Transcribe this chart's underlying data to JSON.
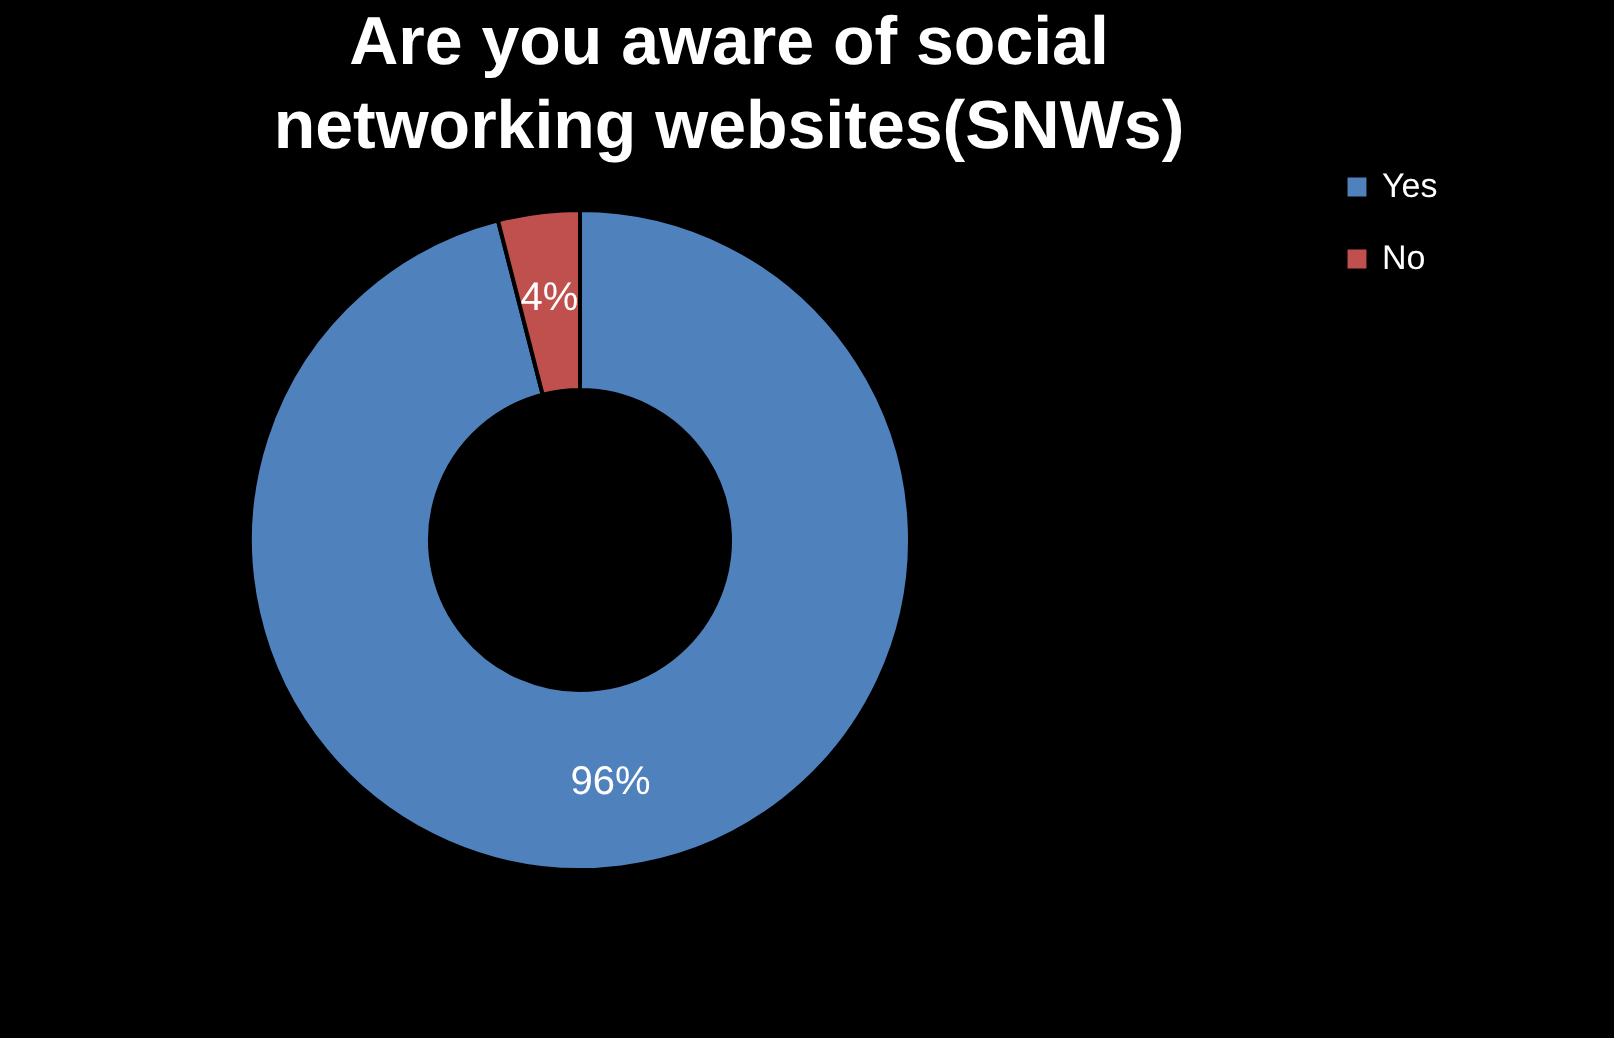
{
  "chart_data": {
    "type": "donut",
    "title": "Are you aware of social networking websites(SNWs)",
    "categories": [
      "Yes",
      "No"
    ],
    "values": [
      96,
      4
    ],
    "colors": [
      "#4f81bd",
      "#c0504d"
    ],
    "value_labels": [
      "96%",
      "4%"
    ],
    "legend": "right"
  }
}
